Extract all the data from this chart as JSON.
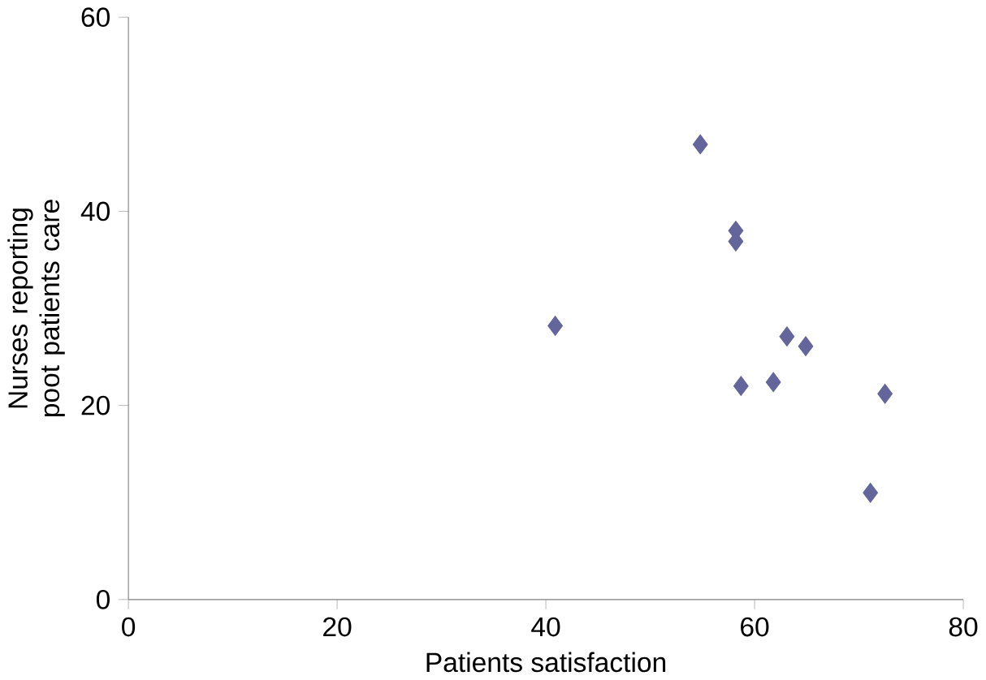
{
  "chart_data": {
    "type": "scatter",
    "xlabel": "Patients satisfaction",
    "ylabel": "Nurses reporting poot patients care",
    "x": [
      40.9,
      54.8,
      58.2,
      58.2,
      58.7,
      61.8,
      63.1,
      64.9,
      72.5,
      71.1
    ],
    "values": [
      28.2,
      46.9,
      38.0,
      36.9,
      22.0,
      22.4,
      27.1,
      26.1,
      21.2,
      11.0
    ],
    "color": "#63659b",
    "marker": "diamond",
    "xlim": [
      0,
      80
    ],
    "xticks": [
      0,
      20,
      40,
      60,
      80
    ],
    "ylim": [
      0,
      60
    ],
    "yticks": [
      0,
      20,
      40,
      60
    ],
    "grid": false
  }
}
